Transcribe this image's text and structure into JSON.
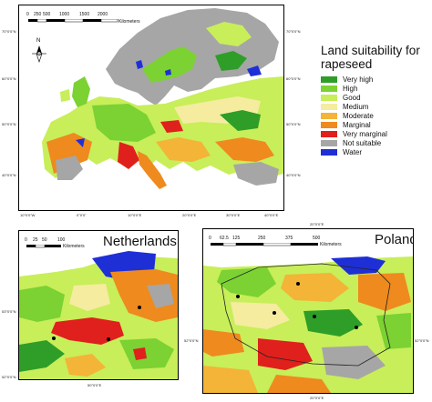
{
  "colors": {
    "very_high": "#2e9e28",
    "high": "#7bd232",
    "good": "#c8ee5a",
    "medium": "#f5eca0",
    "moderate": "#f3b437",
    "marginal": "#ef8a1e",
    "very_marginal": "#e0201c",
    "not_suitable": "#a6a6a6",
    "water": "#1f2fd6",
    "sea": "#ffffff"
  },
  "legend": {
    "title": "Land suitability for rapeseed",
    "items": [
      {
        "label": "Very high",
        "color": "#2e9e28"
      },
      {
        "label": "High",
        "color": "#7bd232"
      },
      {
        "label": "Good",
        "color": "#c8ee5a"
      },
      {
        "label": "Medium",
        "color": "#f5eca0"
      },
      {
        "label": "Moderate",
        "color": "#f3b437"
      },
      {
        "label": "Marginal",
        "color": "#ef8a1e"
      },
      {
        "label": "Very marginal",
        "color": "#e0201c"
      },
      {
        "label": "Not suitable",
        "color": "#a6a6a6"
      },
      {
        "label": "Water",
        "color": "#1f2fd6"
      }
    ]
  },
  "europe": {
    "scale_ticks": [
      "0",
      "250",
      "500",
      "1000",
      "1500",
      "2000"
    ],
    "scale_unit": "Kilometers",
    "north": "N",
    "left_ticks": [
      "70°0'0\"N",
      "60°0'0\"N",
      "50°0'0\"N",
      "40°0'0\"N"
    ],
    "right_ticks": [
      "70°0'0\"N",
      "60°0'0\"N",
      "50°0'0\"N",
      "40°0'0\"N"
    ],
    "bottom_ticks": [
      "10°0'0\"W",
      "0°0'0\"",
      "10°0'0\"E",
      "20°0'0\"E",
      "30°0'0\"E",
      "40°0'0\"E"
    ]
  },
  "netherlands": {
    "title": "Netherlands",
    "scale_ticks": [
      "0",
      "25",
      "50",
      "100"
    ],
    "scale_unit": "Kilometers",
    "left_tick_top": "53°0'0\"N",
    "left_tick_bottom": "52°0'0\"N",
    "bottom_tick": "50°0'0\"E"
  },
  "poland": {
    "title": "Poland",
    "scale_ticks": [
      "0",
      "62.5",
      "125",
      "250",
      "375",
      "500"
    ],
    "scale_unit": "Kilometers",
    "top_tick": "20°0'0\"E",
    "bottom_tick": "20°0'0\"E",
    "right_tick": "52°0'0\"N",
    "left_tick": "52°0'0\"N"
  }
}
